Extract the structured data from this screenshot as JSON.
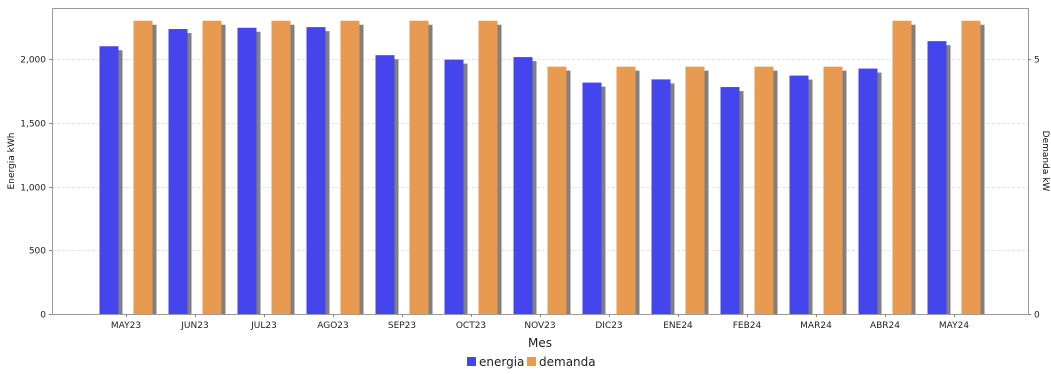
{
  "chart_data": {
    "type": "bar",
    "xlabel": "Mes",
    "categories": [
      "MAY23",
      "JUN23",
      "JUL23",
      "AGO23",
      "SEP23",
      "OCT23",
      "NOV23",
      "DIC23",
      "ENE24",
      "FEB24",
      "MAR24",
      "ABR24",
      "MAY24"
    ],
    "series": [
      {
        "name": "energia",
        "axis": "left",
        "color": "#4545ee",
        "values": [
          2100,
          2235,
          2245,
          2250,
          2030,
          1995,
          2015,
          1815,
          1840,
          1780,
          1870,
          1925,
          2140
        ]
      },
      {
        "name": "demanda",
        "axis": "right",
        "color": "#e79a50",
        "values": [
          5.75,
          5.75,
          5.75,
          5.75,
          5.75,
          5.75,
          4.85,
          4.85,
          4.85,
          4.85,
          4.85,
          5.75,
          5.75
        ]
      }
    ],
    "y_left": {
      "label": "Energia kWh",
      "range": [
        0,
        2400
      ],
      "ticks": [
        0,
        500,
        1000,
        1500,
        2000
      ],
      "tick_labels": [
        "0",
        "500",
        "1,000",
        "1,500",
        "2,000"
      ]
    },
    "y_right": {
      "label": "Demanda kW",
      "range": [
        0,
        6.0
      ],
      "ticks": [
        0,
        5
      ],
      "tick_labels": [
        "0",
        "5"
      ]
    },
    "grid": true,
    "legend_position": "bottom-center",
    "shadow_color": "#808080",
    "grid_color": "#e3e3e3"
  }
}
